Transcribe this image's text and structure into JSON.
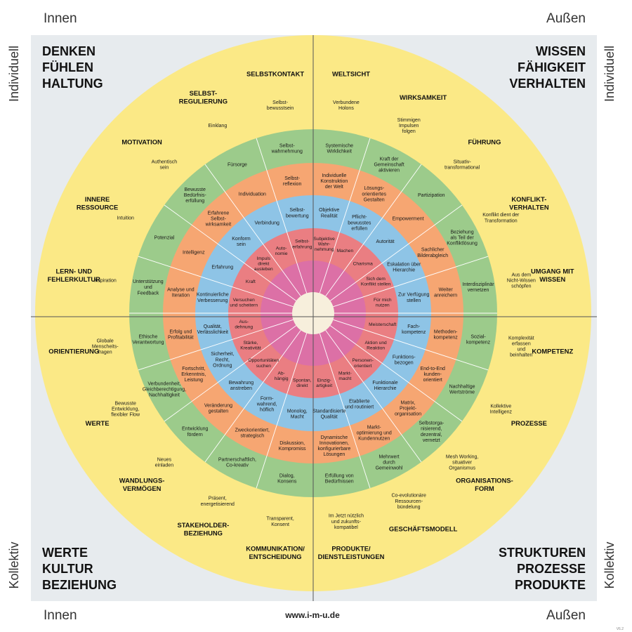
{
  "corners": {
    "top_left": "Innen",
    "top_right": "Außen",
    "bottom_left": "Innen",
    "bottom_right": "Außen",
    "left_top": "Individuell",
    "right_top": "Individuell",
    "left_bottom": "Kollektiv",
    "right_bottom": "Kollektiv",
    "footer_url": "www.i-m-u.de",
    "version": "V6.2"
  },
  "quadrant_titles": {
    "tl": [
      "DENKEN",
      "FÜHLEN",
      "HALTUNG"
    ],
    "tr": [
      "WISSEN",
      "FÄHIGKEIT",
      "VERHALTEN"
    ],
    "bl": [
      "WERTE",
      "KULTUR",
      "BEZIEHUNG"
    ],
    "br": [
      "STRUKTUREN",
      "PROZESSE",
      "PRODUKTE"
    ]
  },
  "colors": {
    "background": "#e7ebee",
    "yellow": "#fbe986",
    "green": "#9ccb8b",
    "orange": "#f6a672",
    "blue": "#8ec4e6",
    "red": "#ea7e82",
    "pink": "#dc70a6",
    "center": "#f7efdc",
    "text": "#1a1a1a",
    "line": "#ffffff"
  },
  "categories": [
    {
      "text": [
        "WELTSICHT"
      ]
    },
    {
      "text": [
        "WIRKSAMKEIT"
      ]
    },
    {
      "text": [
        "FÜHRUNG"
      ]
    },
    {
      "text": [
        "KONFLIKT-",
        "VERHALTEN"
      ]
    },
    {
      "text": [
        "UMGANG MIT",
        "WISSEN"
      ]
    },
    {
      "text": [
        "KOMPETENZ"
      ]
    },
    {
      "text": [
        "PROZESSE"
      ]
    },
    {
      "text": [
        "ORGANISATIONS-",
        "FORM"
      ]
    },
    {
      "text": [
        "GESCHÄFTSMODELL"
      ]
    },
    {
      "text": [
        "PRODUKTE/",
        "DIENSTLEISTUNGEN"
      ]
    },
    {
      "text": [
        "KOMMUNIKATION/",
        "ENTSCHEIDUNG"
      ]
    },
    {
      "text": [
        "STAKEHOLDER-",
        "BEZIEHUNG"
      ]
    },
    {
      "text": [
        "WANDLUNGS-",
        "VERMÖGEN"
      ]
    },
    {
      "text": [
        "WERTE"
      ]
    },
    {
      "text": [
        "ORIENTIERUNG"
      ]
    },
    {
      "text": [
        "LERN- UND",
        "FEHLERKULTUR"
      ]
    },
    {
      "text": [
        "INNERE",
        "RESSOURCE"
      ]
    },
    {
      "text": [
        "MOTIVATION"
      ]
    },
    {
      "text": [
        "SELBST-",
        "REGULIERUNG"
      ]
    },
    {
      "text": [
        "SELBSTKONTAKT"
      ]
    }
  ],
  "labels": [
    {
      "ring": "yellow",
      "text": [
        "Verbundene",
        "Holons"
      ]
    },
    {
      "ring": "yellow",
      "text": [
        "Stimmigen",
        "Impulsen",
        "folgen"
      ]
    },
    {
      "ring": "yellow",
      "text": [
        "Situativ-",
        "transformational"
      ]
    },
    {
      "ring": "yellow",
      "text": [
        "Konflikt dient der",
        "Transformation"
      ]
    },
    {
      "ring": "yellow",
      "text": [
        "Aus dem",
        "Nicht-Wissen",
        "schöpfen"
      ]
    },
    {
      "ring": "yellow",
      "text": [
        "Komplexität",
        "erfassen",
        "und",
        "beinhalten"
      ]
    },
    {
      "ring": "yellow",
      "text": [
        "Kollektive",
        "Intelligenz"
      ]
    },
    {
      "ring": "yellow",
      "text": [
        "Mesh Working,",
        "situativer",
        "Organismus"
      ]
    },
    {
      "ring": "yellow",
      "text": [
        "Co-evolutionäre",
        "Ressourcen-",
        "bündelung"
      ]
    },
    {
      "ring": "yellow",
      "text": [
        "Im Jetzt nützlich",
        "und zukunfts-",
        "kompatibel"
      ]
    },
    {
      "ring": "yellow",
      "text": [
        "Transparent,",
        "Konsent"
      ]
    },
    {
      "ring": "yellow",
      "text": [
        "Präsent,",
        "energetisierend"
      ]
    },
    {
      "ring": "yellow",
      "text": [
        "Neues",
        "einladen"
      ]
    },
    {
      "ring": "yellow",
      "text": [
        "Bewusste",
        "Entwicklung,",
        "flexibler Flow"
      ]
    },
    {
      "ring": "yellow",
      "text": [
        "Globale",
        "Menscheits-",
        "fragen"
      ]
    },
    {
      "ring": "yellow",
      "text": [
        "Inspiration"
      ]
    },
    {
      "ring": "yellow",
      "text": [
        "Intuition"
      ]
    },
    {
      "ring": "yellow",
      "text": [
        "Authentisch",
        "sein"
      ]
    },
    {
      "ring": "yellow",
      "text": [
        "Einklang"
      ]
    },
    {
      "ring": "yellow",
      "text": [
        "Selbst-",
        "bewusstsein"
      ]
    },
    {
      "ring": "green",
      "text": [
        "Systemische",
        "Wirklichkeit"
      ]
    },
    {
      "ring": "green",
      "text": [
        "Kraft der",
        "Gemeinschaft",
        "aktivieren"
      ]
    },
    {
      "ring": "green",
      "text": [
        "Partizipation"
      ]
    },
    {
      "ring": "green",
      "text": [
        "Beziehung",
        "als Teil der",
        "Konfliktlösung"
      ]
    },
    {
      "ring": "green",
      "text": [
        "Interdisziplinär",
        "vernetzen"
      ]
    },
    {
      "ring": "green",
      "text": [
        "Sozial-",
        "kompetenz"
      ]
    },
    {
      "ring": "green",
      "text": [
        "Nachhaltige",
        "Wertströme"
      ]
    },
    {
      "ring": "green",
      "text": [
        "Selbstorga-",
        "nisierend,",
        "dezentral,",
        "vernetzt"
      ]
    },
    {
      "ring": "green",
      "text": [
        "Mehrwert",
        "durch",
        "Gemeinwohl"
      ]
    },
    {
      "ring": "green",
      "text": [
        "Erfüllung von",
        "Bedürfnissen"
      ]
    },
    {
      "ring": "green",
      "text": [
        "Dialog,",
        "Konsens"
      ]
    },
    {
      "ring": "green",
      "text": [
        "Partnerschaftlich,",
        "Co-kreativ"
      ]
    },
    {
      "ring": "green",
      "text": [
        "Entwicklung",
        "fördern"
      ]
    },
    {
      "ring": "green",
      "text": [
        "Verbundenheit,",
        "Gleichberechtigung,",
        "Nachhaltigkeit"
      ]
    },
    {
      "ring": "green",
      "text": [
        "Ethische",
        "Verantwortung"
      ]
    },
    {
      "ring": "green",
      "text": [
        "Unterstützung",
        "und",
        "Feedback"
      ]
    },
    {
      "ring": "green",
      "text": [
        "Potenzial"
      ]
    },
    {
      "ring": "green",
      "text": [
        "Bewusste",
        "Bedürfnis-",
        "erfüllung"
      ]
    },
    {
      "ring": "green",
      "text": [
        "Fürsorge"
      ]
    },
    {
      "ring": "green",
      "text": [
        "Selbst-",
        "wahrnehmung"
      ]
    },
    {
      "ring": "orange",
      "text": [
        "Individuelle",
        "Konstruktion",
        "der Welt"
      ]
    },
    {
      "ring": "orange",
      "text": [
        "Lösungs-",
        "orientiertes",
        "Gestalten"
      ]
    },
    {
      "ring": "orange",
      "text": [
        "Empowerment"
      ]
    },
    {
      "ring": "orange",
      "text": [
        "Sachlicher",
        "Bilderabgleich"
      ]
    },
    {
      "ring": "orange",
      "text": [
        "Weiter",
        "anreichern"
      ]
    },
    {
      "ring": "orange",
      "text": [
        "Methoden-",
        "kompetenz"
      ]
    },
    {
      "ring": "orange",
      "text": [
        "End-to-End",
        "kunden-",
        "orientiert"
      ]
    },
    {
      "ring": "orange",
      "text": [
        "Matrix,",
        "Projekt-",
        "organisation"
      ]
    },
    {
      "ring": "orange",
      "text": [
        "Markt-",
        "optimierung und",
        "Kundennutzen"
      ]
    },
    {
      "ring": "orange",
      "text": [
        "Dynamische",
        "Innovationen,",
        "konfigurierbare",
        "Lösungen"
      ]
    },
    {
      "ring": "orange",
      "text": [
        "Diskussion,",
        "Kompromiss"
      ]
    },
    {
      "ring": "orange",
      "text": [
        "Zweckorientiert,",
        "strategisch"
      ]
    },
    {
      "ring": "orange",
      "text": [
        "Veränderung",
        "gestalten"
      ]
    },
    {
      "ring": "orange",
      "text": [
        "Fortschritt,",
        "Erkenntnis,",
        "Leistung"
      ]
    },
    {
      "ring": "orange",
      "text": [
        "Erfolg und",
        "Profitabilität"
      ]
    },
    {
      "ring": "orange",
      "text": [
        "Analyse und",
        "Iteration"
      ]
    },
    {
      "ring": "orange",
      "text": [
        "Intelligenz"
      ]
    },
    {
      "ring": "orange",
      "text": [
        "Erfahrene",
        "Selbst-",
        "wirksamkeit"
      ]
    },
    {
      "ring": "orange",
      "text": [
        "Individuation"
      ]
    },
    {
      "ring": "orange",
      "text": [
        "Selbst-",
        "reflexion"
      ]
    },
    {
      "ring": "blue",
      "text": [
        "Objektive",
        "Realität"
      ]
    },
    {
      "ring": "blue",
      "text": [
        "Pflicht-",
        "bewusstes",
        "erfüllen"
      ]
    },
    {
      "ring": "blue",
      "text": [
        "Autorität"
      ]
    },
    {
      "ring": "blue",
      "text": [
        "Eskalation über",
        "Hierarchie"
      ]
    },
    {
      "ring": "blue",
      "text": [
        "Zur Verfügung",
        "stellen"
      ]
    },
    {
      "ring": "blue",
      "text": [
        "Fach-",
        "kompetenz"
      ]
    },
    {
      "ring": "blue",
      "text": [
        "Funktions-",
        "bezogen"
      ]
    },
    {
      "ring": "blue",
      "text": [
        "Funktionale",
        "Hierarchie"
      ]
    },
    {
      "ring": "blue",
      "text": [
        "Etablierte",
        "und routiniert"
      ]
    },
    {
      "ring": "blue",
      "text": [
        "Standardisierte",
        "Qualität"
      ]
    },
    {
      "ring": "blue",
      "text": [
        "Monolog,",
        "Macht"
      ]
    },
    {
      "ring": "blue",
      "text": [
        "Form-",
        "wahrend,",
        "höflich"
      ]
    },
    {
      "ring": "blue",
      "text": [
        "Bewahrung",
        "anstreben"
      ]
    },
    {
      "ring": "blue",
      "text": [
        "Sicherheit,",
        "Recht,",
        "Ordnung"
      ]
    },
    {
      "ring": "blue",
      "text": [
        "Qualität,",
        "Verlässlichkeit"
      ]
    },
    {
      "ring": "blue",
      "text": [
        "Kontinuierliche",
        "Verbesserung"
      ]
    },
    {
      "ring": "blue",
      "text": [
        "Erfahrung"
      ]
    },
    {
      "ring": "blue",
      "text": [
        "Konform",
        "sein"
      ]
    },
    {
      "ring": "blue",
      "text": [
        "Verbindung"
      ]
    },
    {
      "ring": "blue",
      "text": [
        "Selbst-",
        "bewertung"
      ]
    },
    {
      "ring": "red",
      "text": [
        "Subjektive",
        "Wahr-",
        "nehmung"
      ]
    },
    {
      "ring": "red",
      "text": [
        "Machen"
      ]
    },
    {
      "ring": "red",
      "text": [
        "Charisma"
      ]
    },
    {
      "ring": "red",
      "text": [
        "Sich dem",
        "Konflikt stellen"
      ]
    },
    {
      "ring": "red",
      "text": [
        "Für mich",
        "nutzen"
      ]
    },
    {
      "ring": "red",
      "text": [
        "Meisterschaft"
      ]
    },
    {
      "ring": "red",
      "text": [
        "Aktion und",
        "Reaktion"
      ]
    },
    {
      "ring": "red",
      "text": [
        "Personen-",
        "orientiert"
      ]
    },
    {
      "ring": "red",
      "text": [
        "Markt-",
        "macht"
      ]
    },
    {
      "ring": "red",
      "text": [
        "Einzig-",
        "artigkeit"
      ]
    },
    {
      "ring": "red",
      "text": [
        "Spontan,",
        "direkt"
      ]
    },
    {
      "ring": "red",
      "text": [
        "Ab-",
        "hängig"
      ]
    },
    {
      "ring": "red",
      "text": [
        "Opportunitäten",
        "suchen"
      ]
    },
    {
      "ring": "red",
      "text": [
        "Stärke,",
        "Kreativität"
      ]
    },
    {
      "ring": "red",
      "text": [
        "Aus-",
        "dehnung"
      ]
    },
    {
      "ring": "red",
      "text": [
        "Versuchen",
        "und scheitern"
      ]
    },
    {
      "ring": "red",
      "text": [
        "Kraft"
      ]
    },
    {
      "ring": "red",
      "text": [
        "Impuls",
        "direkt",
        "ausleben"
      ]
    },
    {
      "ring": "red",
      "text": [
        "Auto-",
        "nomie"
      ]
    },
    {
      "ring": "red",
      "text": [
        "Selbst-",
        "erfahrung"
      ]
    }
  ]
}
